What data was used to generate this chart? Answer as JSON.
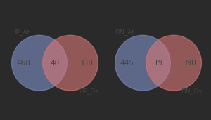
{
  "diagrams": [
    {
      "left_label": "UP_At",
      "right_label": "UP_Os",
      "left_value": "468",
      "intersect_value": "40",
      "right_value": "338",
      "left_color": "#8090c8",
      "right_color": "#d97878",
      "alpha": 0.6
    },
    {
      "left_label": "DN_At",
      "right_label": "DN_Os",
      "left_value": "445",
      "intersect_value": "19",
      "right_value": "390",
      "left_color": "#8090c8",
      "right_color": "#d97878",
      "alpha": 0.6
    }
  ],
  "fig_background": "#2a2a2a",
  "panel_background": "#f5f5f5",
  "text_color": "#444444",
  "label_color": "#444444",
  "text_fontsize": 7.5,
  "label_fontsize": 6.5,
  "panel_edge_color": "#aaaaaa"
}
